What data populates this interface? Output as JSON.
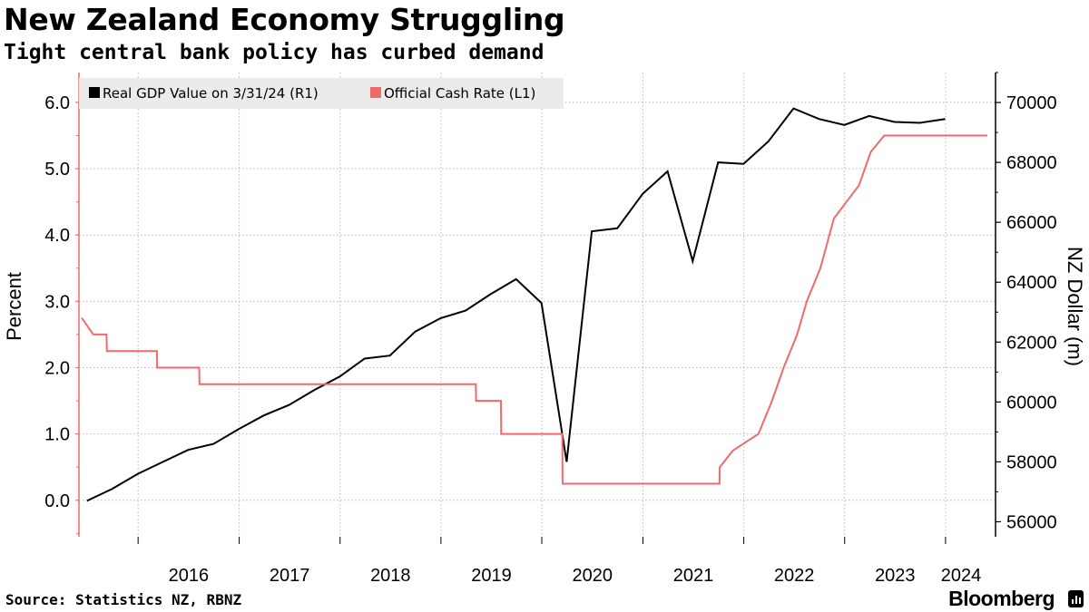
{
  "header": {
    "title": "New Zealand Economy Struggling",
    "subtitle": "Tight central bank policy has curbed demand"
  },
  "footer": {
    "source": "Source: Statistics NZ, RBNZ",
    "brand": "Bloomberg"
  },
  "colors": {
    "gdp": "#000000",
    "ocr": "#f06a6a",
    "grid": "#b8b8b8",
    "legend_bg": "#ebebeb"
  },
  "chart_data": {
    "type": "line",
    "title": "New Zealand Economy Struggling",
    "subtitle": "Tight central bank policy has curbed demand",
    "ylabel_left": "Percent",
    "ylabel_right": "NZ Dollar (m)",
    "x_tick_labels": [
      "2016",
      "2017",
      "2018",
      "2019",
      "2020",
      "2021",
      "2022",
      "2023",
      "2024"
    ],
    "left_ticks": [
      "0.0",
      "1.0",
      "2.0",
      "3.0",
      "4.0",
      "5.0",
      "6.0"
    ],
    "right_ticks": [
      "56000",
      "58000",
      "60000",
      "62000",
      "64000",
      "66000",
      "68000",
      "70000"
    ],
    "ylim_left": [
      -0.55,
      6.45
    ],
    "ylim_right": [
      55500,
      71000
    ],
    "xlim": [
      "2015-06-01",
      "2024-06-30"
    ],
    "grid": true,
    "legend_position": "top-left",
    "series": [
      {
        "name": "Real GDP Value on 3/31/24 (R1)",
        "axis": "right",
        "points": [
          [
            "2015-06-30",
            56700
          ],
          [
            "2015-09-30",
            57100
          ],
          [
            "2015-12-31",
            57600
          ],
          [
            "2016-03-31",
            58000
          ],
          [
            "2016-06-30",
            58400
          ],
          [
            "2016-09-30",
            58600
          ],
          [
            "2016-12-31",
            59100
          ],
          [
            "2017-03-31",
            59550
          ],
          [
            "2017-06-30",
            59900
          ],
          [
            "2017-09-30",
            60400
          ],
          [
            "2017-12-31",
            60850
          ],
          [
            "2018-03-31",
            61450
          ],
          [
            "2018-06-30",
            61550
          ],
          [
            "2018-09-30",
            62350
          ],
          [
            "2018-12-31",
            62800
          ],
          [
            "2019-03-31",
            63050
          ],
          [
            "2019-06-30",
            63600
          ],
          [
            "2019-09-30",
            64100
          ],
          [
            "2019-12-31",
            63300
          ],
          [
            "2020-03-31",
            58000
          ],
          [
            "2020-06-30",
            65700
          ],
          [
            "2020-09-30",
            65800
          ],
          [
            "2020-12-31",
            66950
          ],
          [
            "2021-03-31",
            67700
          ],
          [
            "2021-06-30",
            64700
          ],
          [
            "2021-09-30",
            68000
          ],
          [
            "2021-12-31",
            67950
          ],
          [
            "2022-03-31",
            68700
          ],
          [
            "2022-06-30",
            69800
          ],
          [
            "2022-09-30",
            69450
          ],
          [
            "2022-12-31",
            69250
          ],
          [
            "2023-03-31",
            69550
          ],
          [
            "2023-06-30",
            69350
          ],
          [
            "2023-09-30",
            69320
          ],
          [
            "2023-12-31",
            69450
          ]
        ]
      },
      {
        "name": "Official Cash Rate (L1)",
        "axis": "left",
        "points": [
          [
            "2015-06-11",
            2.75
          ],
          [
            "2015-07-23",
            2.5
          ],
          [
            "2015-09-09",
            2.5
          ],
          [
            "2015-09-10",
            2.25
          ],
          [
            "2015-12-09",
            2.25
          ],
          [
            "2015-12-10",
            2.25
          ],
          [
            "2016-03-09",
            2.25
          ],
          [
            "2016-03-10",
            2.0
          ],
          [
            "2016-08-09",
            2.0
          ],
          [
            "2016-08-10",
            1.75
          ],
          [
            "2016-11-09",
            1.75
          ],
          [
            "2016-11-10",
            1.75
          ],
          [
            "2019-05-07",
            1.75
          ],
          [
            "2019-05-08",
            1.5
          ],
          [
            "2019-08-06",
            1.5
          ],
          [
            "2019-08-07",
            1.0
          ],
          [
            "2020-03-15",
            1.0
          ],
          [
            "2020-03-16",
            0.25
          ],
          [
            "2021-10-05",
            0.25
          ],
          [
            "2021-10-06",
            0.5
          ],
          [
            "2021-11-23",
            0.75
          ],
          [
            "2022-02-23",
            1.0
          ],
          [
            "2022-04-13",
            1.5
          ],
          [
            "2022-05-25",
            2.0
          ],
          [
            "2022-07-13",
            2.5
          ],
          [
            "2022-08-17",
            3.0
          ],
          [
            "2022-10-05",
            3.5
          ],
          [
            "2022-11-23",
            4.25
          ],
          [
            "2023-02-22",
            4.75
          ],
          [
            "2023-04-05",
            5.25
          ],
          [
            "2023-05-24",
            5.5
          ],
          [
            "2024-05-31",
            5.5
          ]
        ]
      }
    ]
  }
}
